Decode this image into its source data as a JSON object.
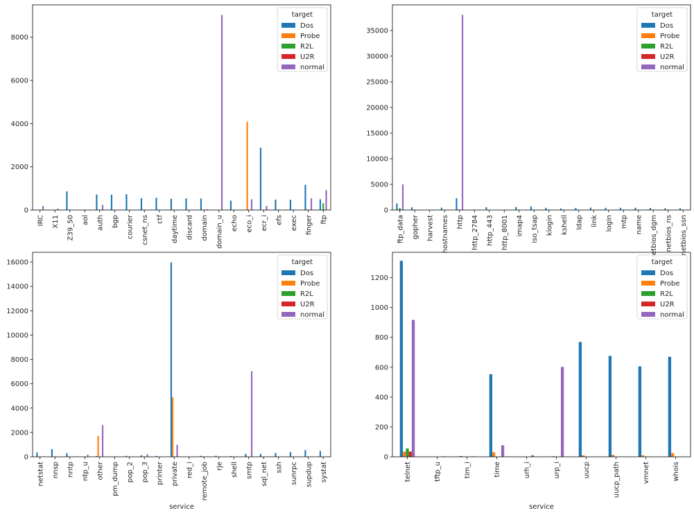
{
  "legend_title": "target",
  "series_names": [
    "Dos",
    "Probe",
    "R2L",
    "U2R",
    "normal"
  ],
  "colors": [
    "#1f77b4",
    "#ff7f0e",
    "#2ca02c",
    "#d62728",
    "#9467bd"
  ],
  "chart_data": [
    {
      "type": "bar",
      "xlabel": "",
      "ylim": [
        0,
        9500
      ],
      "yticks": [
        0,
        2000,
        4000,
        6000,
        8000
      ],
      "legend_position": "top-right",
      "categories": [
        "IRC",
        "X11",
        "Z39_50",
        "aol",
        "auth",
        "bgp",
        "courier",
        "csnet_ns",
        "ctf",
        "daytime",
        "discard",
        "domain",
        "domain_u",
        "echo",
        "eco_i",
        "ecr_i",
        "efs",
        "exec",
        "finger",
        "ftp"
      ],
      "series": [
        {
          "name": "Dos",
          "values": [
            0,
            0,
            862,
            0,
            719,
            710,
            734,
            545,
            563,
            521,
            538,
            531,
            9,
            434,
            0,
            2887,
            485,
            474,
            1166,
            500
          ]
        },
        {
          "name": "Probe",
          "values": [
            8,
            5,
            0,
            0,
            10,
            0,
            0,
            0,
            0,
            0,
            0,
            0,
            0,
            0,
            4089,
            0,
            0,
            0,
            20,
            0
          ]
        },
        {
          "name": "R2L",
          "values": [
            0,
            0,
            0,
            0,
            2,
            0,
            0,
            0,
            0,
            0,
            0,
            0,
            0,
            0,
            0,
            0,
            0,
            0,
            0,
            318
          ]
        },
        {
          "name": "U2R",
          "values": [
            0,
            0,
            0,
            0,
            0,
            0,
            0,
            0,
            0,
            0,
            0,
            0,
            0,
            0,
            0,
            0,
            0,
            0,
            0,
            4
          ]
        },
        {
          "name": "normal",
          "values": [
            187,
            67,
            0,
            0,
            236,
            0,
            0,
            0,
            0,
            0,
            0,
            38,
            9034,
            0,
            497,
            190,
            0,
            0,
            545,
            918
          ]
        }
      ]
    },
    {
      "type": "bar",
      "xlabel": "",
      "ylim": [
        0,
        40000
      ],
      "yticks": [
        0,
        5000,
        10000,
        15000,
        20000,
        25000,
        30000,
        35000
      ],
      "legend_position": "top-right",
      "categories": [
        "ftp_data",
        "gopher",
        "harvest",
        "hostnames",
        "http",
        "http_2784",
        "http_443",
        "http_8001",
        "imap4",
        "iso_tsap",
        "klogin",
        "kshell",
        "ldap",
        "link",
        "login",
        "mtp",
        "name",
        "netbios_dgm",
        "netbios_ns",
        "netbios_ssn"
      ],
      "series": [
        {
          "name": "Dos",
          "values": [
            1282,
            518,
            0,
            460,
            2289,
            0,
            530,
            0,
            581,
            687,
            433,
            299,
            410,
            475,
            429,
            439,
            451,
            405,
            347,
            362
          ]
        },
        {
          "name": "Probe",
          "values": [
            100,
            30,
            2,
            20,
            100,
            1,
            20,
            2,
            20,
            10,
            0,
            0,
            0,
            0,
            0,
            0,
            0,
            0,
            0,
            0
          ]
        },
        {
          "name": "R2L",
          "values": [
            407,
            0,
            0,
            0,
            30,
            0,
            0,
            0,
            10,
            0,
            0,
            0,
            0,
            0,
            0,
            0,
            0,
            0,
            0,
            0
          ]
        },
        {
          "name": "U2R",
          "values": [
            20,
            0,
            0,
            0,
            0,
            0,
            0,
            0,
            0,
            0,
            0,
            0,
            0,
            0,
            0,
            0,
            0,
            0,
            0,
            0
          ]
        },
        {
          "name": "normal",
          "values": [
            5013,
            0,
            0,
            0,
            38049,
            0,
            0,
            0,
            0,
            0,
            0,
            0,
            0,
            0,
            0,
            0,
            0,
            0,
            0,
            0
          ]
        }
      ]
    },
    {
      "type": "bar",
      "xlabel": "service",
      "ylim": [
        0,
        16800
      ],
      "yticks": [
        0,
        2000,
        4000,
        6000,
        8000,
        10000,
        12000,
        14000,
        16000
      ],
      "legend_position": "top-right",
      "categories": [
        "netstat",
        "nnsp",
        "nntp",
        "ntp_u",
        "other",
        "pm_dump",
        "pop_2",
        "pop_3",
        "printer",
        "private",
        "red_i",
        "remote_job",
        "rje",
        "shell",
        "smtp",
        "sql_net",
        "ssh",
        "sunrpc",
        "supdup",
        "systat"
      ],
      "series": [
        {
          "name": "Dos",
          "values": [
            360,
            625,
            296,
            0,
            48,
            0,
            78,
            123,
            69,
            15971,
            0,
            78,
            86,
            61,
            242,
            245,
            311,
            381,
            546,
            477
          ]
        },
        {
          "name": "Probe",
          "values": [
            0,
            0,
            0,
            0,
            1710,
            5,
            0,
            0,
            0,
            4900,
            0,
            0,
            0,
            0,
            20,
            0,
            0,
            0,
            0,
            0
          ]
        },
        {
          "name": "R2L",
          "values": [
            0,
            0,
            0,
            0,
            0,
            0,
            0,
            0,
            0,
            0,
            0,
            0,
            0,
            0,
            0,
            0,
            0,
            0,
            0,
            0
          ]
        },
        {
          "name": "U2R",
          "values": [
            0,
            0,
            0,
            0,
            0,
            0,
            0,
            0,
            0,
            0,
            0,
            0,
            0,
            0,
            0,
            0,
            0,
            0,
            0,
            0
          ]
        },
        {
          "name": "normal",
          "values": [
            0,
            0,
            0,
            168,
            2604,
            0,
            0,
            200,
            0,
            982,
            0,
            0,
            0,
            0,
            7029,
            0,
            0,
            0,
            0,
            0
          ]
        }
      ]
    },
    {
      "type": "bar",
      "xlabel": "service",
      "ylim": [
        0,
        1370
      ],
      "yticks": [
        0,
        200,
        400,
        600,
        800,
        1000,
        1200
      ],
      "legend_position": "top-right",
      "categories": [
        "telnet",
        "tftp_u",
        "tim_i",
        "time",
        "urh_i",
        "urp_i",
        "uucp",
        "uucp_path",
        "vmnet",
        "whois"
      ],
      "series": [
        {
          "name": "Dos",
          "values": [
            1313,
            0,
            5,
            553,
            0,
            0,
            769,
            676,
            606,
            670
          ]
        },
        {
          "name": "Probe",
          "values": [
            34,
            0,
            0,
            30,
            0,
            4,
            10,
            13,
            10,
            25
          ]
        },
        {
          "name": "R2L",
          "values": [
            56,
            0,
            0,
            0,
            0,
            0,
            0,
            0,
            0,
            0
          ]
        },
        {
          "name": "U2R",
          "values": [
            35,
            0,
            0,
            0,
            0,
            0,
            0,
            0,
            0,
            0
          ]
        },
        {
          "name": "normal",
          "values": [
            917,
            3,
            3,
            77,
            10,
            602,
            0,
            0,
            0,
            0
          ]
        }
      ]
    }
  ]
}
